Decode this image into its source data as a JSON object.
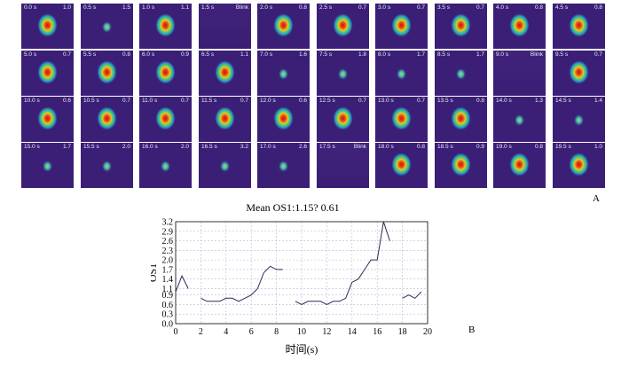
{
  "panel_labels": {
    "a": "A",
    "b": "B"
  },
  "frames": [
    {
      "time": "0.0 s",
      "value": "1.0"
    },
    {
      "time": "0.5 s",
      "value": "1.5"
    },
    {
      "time": "1.0 s",
      "value": "1.1"
    },
    {
      "time": "1.5 s",
      "value": "Blink"
    },
    {
      "time": "2.0 s",
      "value": "0.8"
    },
    {
      "time": "2.5 s",
      "value": "0.7"
    },
    {
      "time": "3.0 s",
      "value": "0.7"
    },
    {
      "time": "3.5 s",
      "value": "0.7"
    },
    {
      "time": "4.0 s",
      "value": "0.8"
    },
    {
      "time": "4.5 s",
      "value": "0.8"
    },
    {
      "time": "5.0 s",
      "value": "0.7"
    },
    {
      "time": "5.5 s",
      "value": "0.8"
    },
    {
      "time": "6.0 s",
      "value": "0.9"
    },
    {
      "time": "6.5 s",
      "value": "1.1"
    },
    {
      "time": "7.0 s",
      "value": "1.6"
    },
    {
      "time": "7.5 s",
      "value": "1.8"
    },
    {
      "time": "8.0 s",
      "value": "1.7"
    },
    {
      "time": "8.5 s",
      "value": "1.7"
    },
    {
      "time": "9.0 s",
      "value": "Blink"
    },
    {
      "time": "9.5 s",
      "value": "0.7"
    },
    {
      "time": "10.0 s",
      "value": "0.6"
    },
    {
      "time": "10.5 s",
      "value": "0.7"
    },
    {
      "time": "11.0 s",
      "value": "0.7"
    },
    {
      "time": "11.5 s",
      "value": "0.7"
    },
    {
      "time": "12.0 s",
      "value": "0.6"
    },
    {
      "time": "12.5 s",
      "value": "0.7"
    },
    {
      "time": "13.0 s",
      "value": "0.7"
    },
    {
      "time": "13.5 s",
      "value": "0.8"
    },
    {
      "time": "14.0 s",
      "value": "1.3"
    },
    {
      "time": "14.5 s",
      "value": "1.4"
    },
    {
      "time": "15.0 s",
      "value": "1.7"
    },
    {
      "time": "15.5 s",
      "value": "2.0"
    },
    {
      "time": "16.0 s",
      "value": "2.0"
    },
    {
      "time": "16.5 s",
      "value": "3.2"
    },
    {
      "time": "17.0 s",
      "value": "2.6"
    },
    {
      "time": "17.5 s",
      "value": "Blink"
    },
    {
      "time": "18.0 s",
      "value": "0.8"
    },
    {
      "time": "18.5 s",
      "value": "0.9"
    },
    {
      "time": "19.0 s",
      "value": "0.8"
    },
    {
      "time": "19.5 s",
      "value": "1.0"
    }
  ],
  "chart_data": {
    "type": "line",
    "title": "Mean OS1:1.15? 0.61",
    "xlabel": "时间(s)",
    "ylabel": "OS1",
    "xlim": [
      0,
      20
    ],
    "ylim": [
      0,
      3.2
    ],
    "xticks": [
      "0",
      "2",
      "4",
      "6",
      "8",
      "10",
      "12",
      "14",
      "16",
      "18",
      "20"
    ],
    "yticks": [
      "0.0",
      "0.3",
      "0.6",
      "0.9",
      "1.1",
      "1.4",
      "1.7",
      "2.0",
      "2.3",
      "2.6",
      "2.9",
      "3.2"
    ],
    "ytick_values": [
      0.0,
      0.3,
      0.6,
      0.9,
      1.1,
      1.4,
      1.7,
      2.0,
      2.3,
      2.6,
      2.9,
      3.2
    ],
    "grid": true,
    "series": [
      {
        "name": "OS1",
        "x": [
          0.0,
          0.5,
          1.0,
          1.5,
          2.0,
          2.5,
          3.0,
          3.5,
          4.0,
          4.5,
          5.0,
          5.5,
          6.0,
          6.5,
          7.0,
          7.5,
          8.0,
          8.5,
          9.0,
          9.5,
          10.0,
          10.5,
          11.0,
          11.5,
          12.0,
          12.5,
          13.0,
          13.5,
          14.0,
          14.5,
          15.0,
          15.5,
          16.0,
          16.5,
          17.0,
          17.5,
          18.0,
          18.5,
          19.0,
          19.5
        ],
        "y": [
          1.0,
          1.5,
          1.1,
          null,
          0.8,
          0.7,
          0.7,
          0.7,
          0.8,
          0.8,
          0.7,
          0.8,
          0.9,
          1.1,
          1.6,
          1.8,
          1.7,
          1.7,
          null,
          0.7,
          0.6,
          0.7,
          0.7,
          0.7,
          0.6,
          0.7,
          0.7,
          0.8,
          1.3,
          1.4,
          1.7,
          2.0,
          2.0,
          3.2,
          2.6,
          null,
          0.8,
          0.9,
          0.8,
          1.0
        ]
      }
    ]
  }
}
